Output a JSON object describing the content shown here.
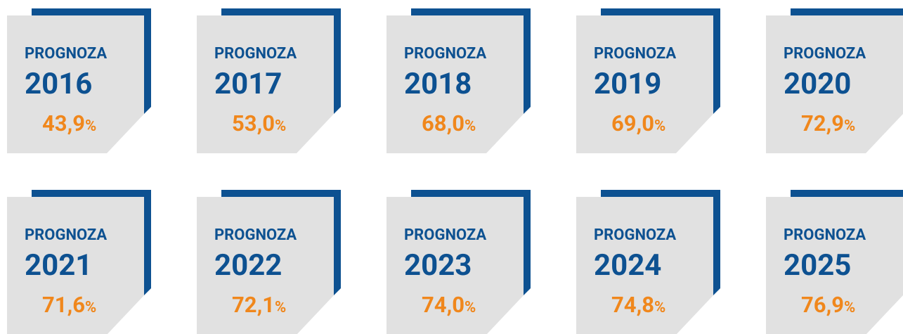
{
  "cards": [
    {
      "label": "PROGNOZA",
      "year": "2016",
      "value": "43,9",
      "unit": "%"
    },
    {
      "label": "PROGNOZA",
      "year": "2017",
      "value": "53,0",
      "unit": "%"
    },
    {
      "label": "PROGNOZA",
      "year": "2018",
      "value": "68,0",
      "unit": "%"
    },
    {
      "label": "PROGNOZA",
      "year": "2019",
      "value": "69,0",
      "unit": "%"
    },
    {
      "label": "PROGNOZA",
      "year": "2020",
      "value": "72,9",
      "unit": "%"
    },
    {
      "label": "PROGNOZA",
      "year": "2021",
      "value": "71,6",
      "unit": "%"
    },
    {
      "label": "PROGNOZA",
      "year": "2022",
      "value": "72,1",
      "unit": "%"
    },
    {
      "label": "PROGNOZA",
      "year": "2023",
      "value": "74,0",
      "unit": "%"
    },
    {
      "label": "PROGNOZA",
      "year": "2024",
      "value": "74,8",
      "unit": "%"
    },
    {
      "label": "PROGNOZA",
      "year": "2025",
      "value": "76,9",
      "unit": "%"
    }
  ]
}
